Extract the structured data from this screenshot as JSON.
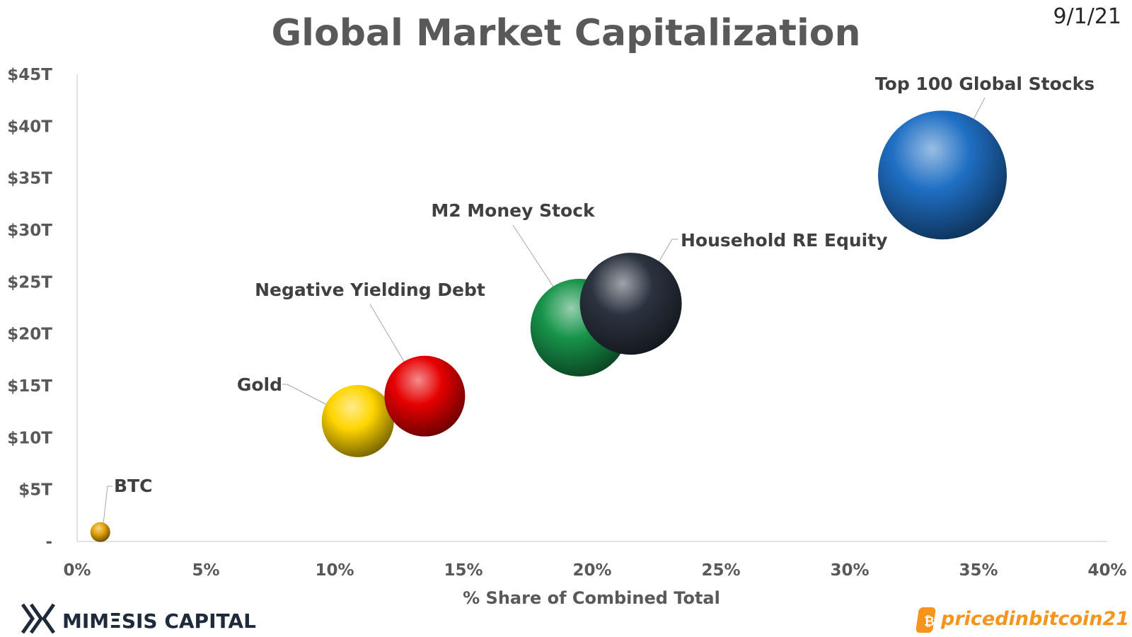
{
  "date": "9/1/21",
  "chart_data": {
    "type": "scatter",
    "title": "Global Market Capitalization",
    "xlabel": "% Share of Combined Total",
    "ylabel": "",
    "xlim": [
      0,
      40
    ],
    "ylim": [
      0,
      45
    ],
    "x_ticks": [
      "0%",
      "5%",
      "10%",
      "15%",
      "20%",
      "25%",
      "30%",
      "35%",
      "40%"
    ],
    "y_ticks": [
      "-",
      "$5T",
      "$10T",
      "$15T",
      "$20T",
      "$25T",
      "$30T",
      "$35T",
      "$40T",
      "$45T"
    ],
    "legend": "none",
    "grid": false,
    "points": [
      {
        "name": "BTC",
        "x": 0.9,
        "y": 0.9,
        "color": "#e5a40c"
      },
      {
        "name": "Gold",
        "x": 10.9,
        "y": 11.6,
        "color": "#ffd500"
      },
      {
        "name": "Negative Yielding Debt",
        "x": 13.5,
        "y": 14.0,
        "color": "#e60000"
      },
      {
        "name": "M2 Money Stock",
        "x": 19.5,
        "y": 20.6,
        "color": "#17944a"
      },
      {
        "name": "Household RE Equity",
        "x": 21.5,
        "y": 22.9,
        "color": "#2b3340"
      },
      {
        "name": "Top 100 Global Stocks",
        "x": 33.6,
        "y": 35.3,
        "color": "#1f6fc4"
      }
    ]
  },
  "branding": {
    "left": "MIMΞSIS CAPITAL",
    "right": "pricedinbitcoin21"
  }
}
